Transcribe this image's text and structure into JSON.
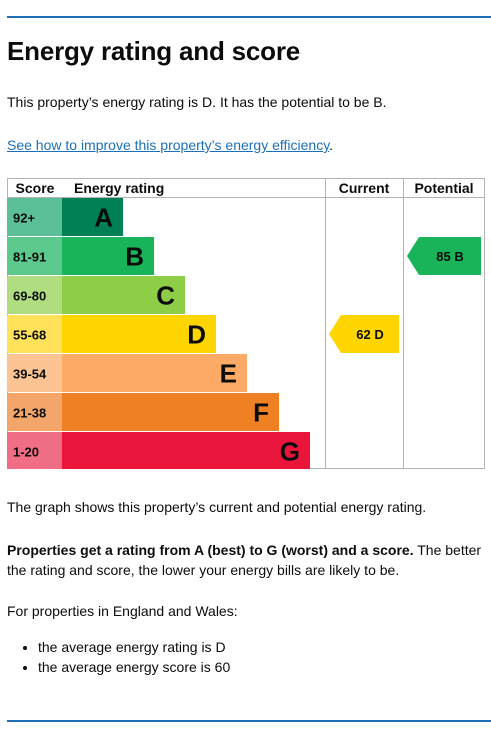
{
  "title": "Energy rating and score",
  "intro": "This property’s energy rating is D. It has the potential to be B.",
  "improve_link": "See how to improve this property’s energy efficiency",
  "improve_link_period": ".",
  "chart_data": {
    "type": "bar",
    "headers": {
      "score": "Score",
      "rating": "Energy rating",
      "current": "Current",
      "potential": "Potential"
    },
    "bands": [
      {
        "score": "92+",
        "letter": "A",
        "color": "#008054",
        "score_color": "#5bc097"
      },
      {
        "score": "81-91",
        "letter": "B",
        "color": "#19b459",
        "score_color": "#5ec98c"
      },
      {
        "score": "69-80",
        "letter": "C",
        "color": "#8dce46",
        "score_color": "#b0dd80"
      },
      {
        "score": "55-68",
        "letter": "D",
        "color": "#ffd500",
        "score_color": "#ffe25a"
      },
      {
        "score": "39-54",
        "letter": "E",
        "color": "#fcaa65",
        "score_color": "#fdc493"
      },
      {
        "score": "21-38",
        "letter": "F",
        "color": "#ef8023",
        "score_color": "#f4a66a"
      },
      {
        "score": "1-20",
        "letter": "G",
        "color": "#e9153b",
        "score_color": "#ef6d85"
      }
    ],
    "current": {
      "score": 62,
      "letter": "D",
      "color": "#ffd500"
    },
    "potential": {
      "score": 85,
      "letter": "B",
      "color": "#19b459"
    }
  },
  "graph_text": "The graph shows this property’s current and potential energy rating.",
  "ratings_bold": "Properties get a rating from A (best) to G (worst) and a score.",
  "ratings_rest": " The better the rating and score, the lower your energy bills are likely to be.",
  "england_wales": "For properties in England and Wales:",
  "bullets": [
    "the average energy rating is D",
    "the average energy score is 60"
  ]
}
